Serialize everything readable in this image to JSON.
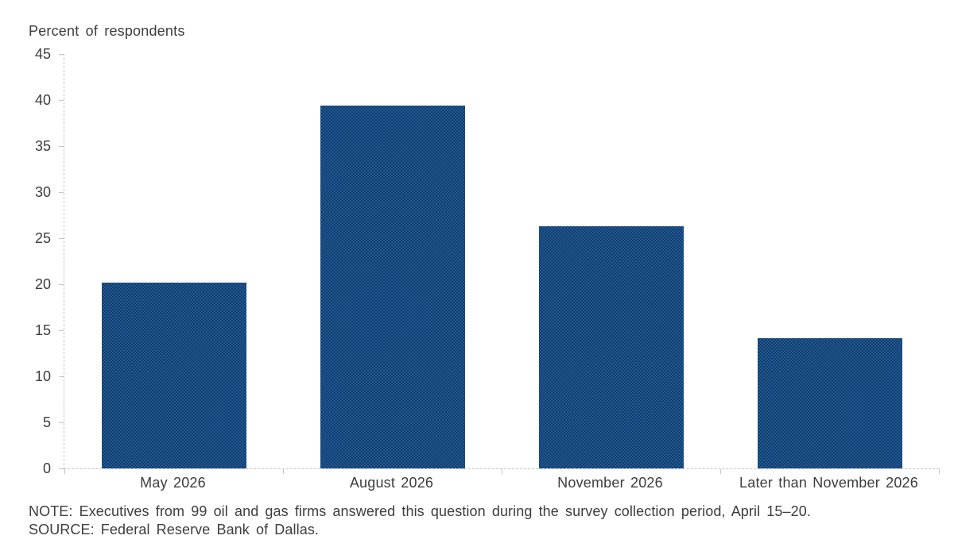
{
  "chart_data": {
    "type": "bar",
    "title": "Percent of respondents",
    "categories": [
      "May 2026",
      "August 2026",
      "November 2026",
      "Later than November 2026"
    ],
    "values": [
      20.2,
      39.4,
      26.3,
      14.1
    ],
    "ylim": [
      0,
      45
    ],
    "yticks": [
      0,
      5,
      10,
      15,
      20,
      25,
      30,
      35,
      40,
      45
    ],
    "grid": "off",
    "legend": "none",
    "bar_color": "#1e5c9e",
    "bar_dot_color": "#153a61",
    "axis_color": "#c5c5c5",
    "text_color": "#3d3d3d",
    "note": "NOTE:  Executives from 99 oil and gas firms answered this question during the survey collection period, April 15–20.",
    "source": "SOURCE:  Federal Reserve Bank of Dallas."
  }
}
